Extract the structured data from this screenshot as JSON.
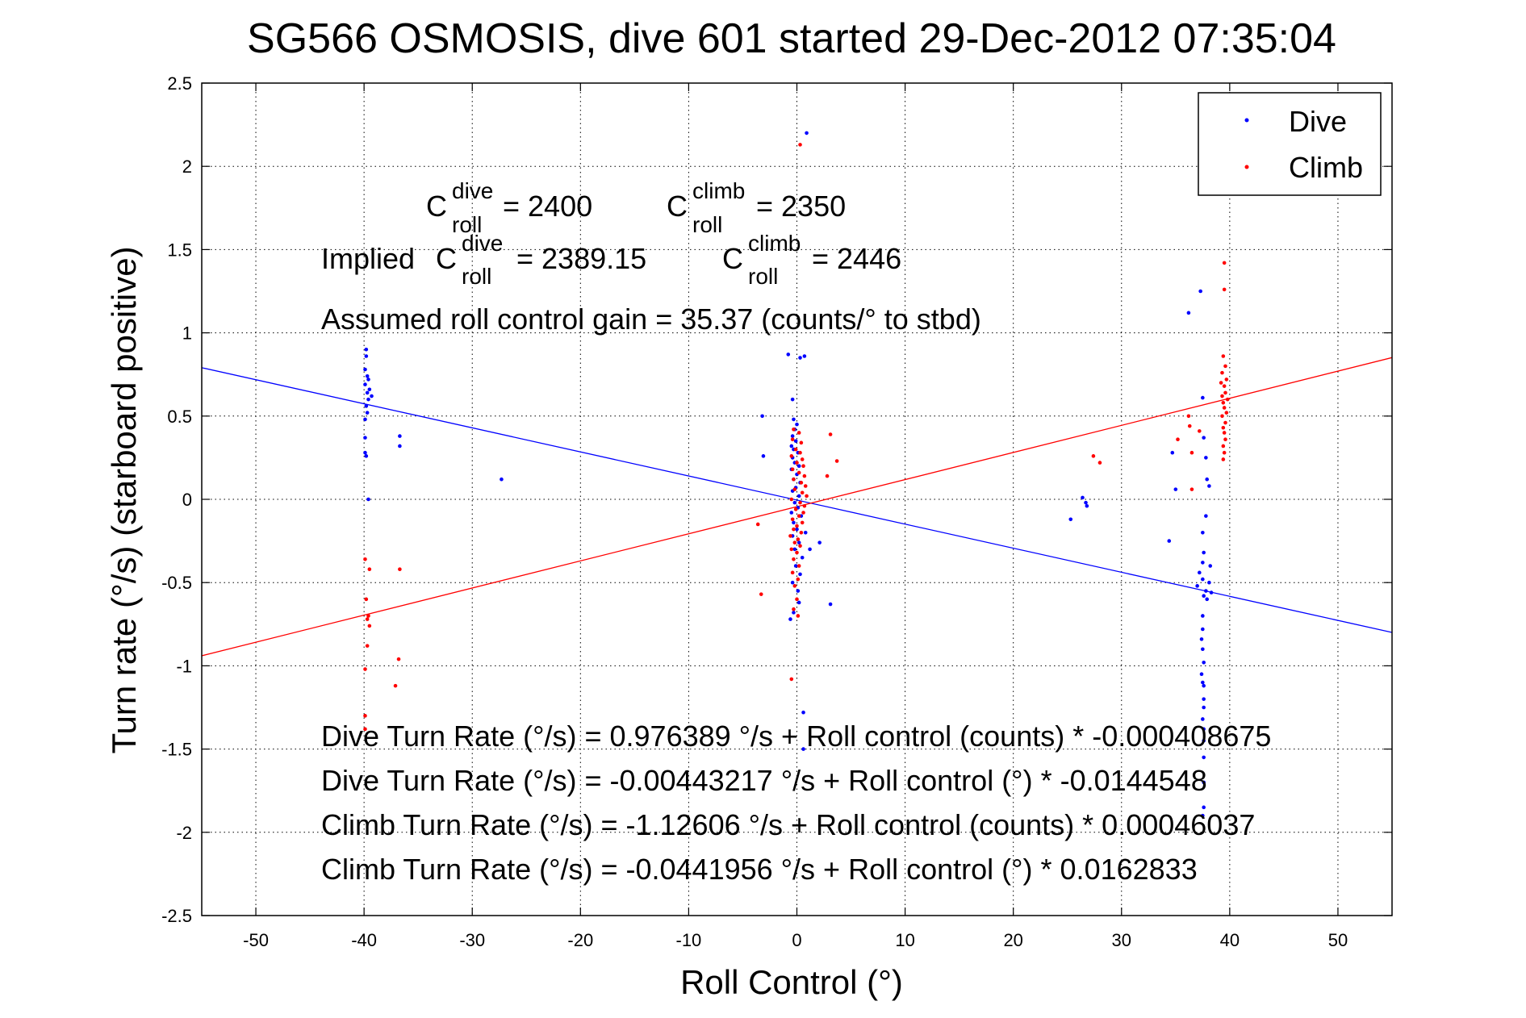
{
  "chart_data": {
    "type": "scatter",
    "title": "SG566 OSMOSIS, dive 601 started 29-Dec-2012 07:35:04",
    "xlabel": "Roll Control (°)",
    "ylabel": "Turn rate (°/s)  (starboard positive)",
    "xlim": [
      -55,
      55
    ],
    "ylim": [
      -2.5,
      2.5
    ],
    "xticks": [
      -50,
      -40,
      -30,
      -20,
      -10,
      0,
      10,
      20,
      30,
      40,
      50
    ],
    "yticks": [
      2.5,
      2,
      1.5,
      1,
      0.5,
      0,
      -0.5,
      -1,
      -1.5,
      -2,
      -2.5
    ],
    "grid": true,
    "legend_position": "top-right",
    "legend": [
      {
        "label": "Dive",
        "color": "#0000ff"
      },
      {
        "label": "Climb",
        "color": "#ff0000"
      }
    ],
    "annotations": {
      "c_roll_dive": {
        "base": "C",
        "sup": "dive",
        "sub": "roll",
        "value": "= 2400"
      },
      "c_roll_climb": {
        "base": "C",
        "sup": "climb",
        "sub": "roll",
        "value": "= 2350"
      },
      "implied_prefix": "Implied",
      "implied_dive": {
        "base": "C",
        "sup": "dive",
        "sub": "roll",
        "value": "= 2389.15"
      },
      "implied_climb": {
        "base": "C",
        "sup": "climb",
        "sub": "roll",
        "value": "= 2446"
      },
      "gain": "Assumed roll control gain = 35.37 (counts/° to stbd)",
      "equations": [
        "Dive Turn Rate (°/s) = 0.976389 °/s + Roll control (counts) * -0.000408675",
        "Dive Turn Rate (°/s) = -0.00443217 °/s + Roll control (°) * -0.0144548",
        "Climb Turn Rate (°/s) = -1.12606 °/s + Roll control (counts) * 0.00046037",
        "Climb Turn Rate (°/s) = -0.0441956 °/s + Roll control (°) * 0.0162833"
      ]
    },
    "fit_lines": [
      {
        "series": "Dive",
        "intercept": -0.00443217,
        "slope": -0.0144548,
        "color": "#0000ff"
      },
      {
        "series": "Climb",
        "intercept": -0.0441956,
        "slope": 0.0162833,
        "color": "#ff0000"
      }
    ],
    "series": [
      {
        "name": "Dive",
        "color": "#0000ff",
        "points": [
          [
            -39.8,
            0.9
          ],
          [
            -39.8,
            0.86
          ],
          [
            -39.9,
            0.78
          ],
          [
            -39.7,
            0.74
          ],
          [
            -39.6,
            0.72
          ],
          [
            -39.9,
            0.69
          ],
          [
            -39.5,
            0.66
          ],
          [
            -39.7,
            0.64
          ],
          [
            -39.3,
            0.62
          ],
          [
            -39.6,
            0.6
          ],
          [
            -39.8,
            0.56
          ],
          [
            -39.7,
            0.52
          ],
          [
            -39.9,
            0.48
          ],
          [
            -39.9,
            0.37
          ],
          [
            -39.9,
            0.28
          ],
          [
            -39.8,
            0.26
          ],
          [
            -39.6,
            0.0
          ],
          [
            -36.7,
            0.38
          ],
          [
            -36.7,
            0.32
          ],
          [
            -27.3,
            0.12
          ],
          [
            -3.2,
            0.5
          ],
          [
            -3.1,
            0.26
          ],
          [
            -0.8,
            0.87
          ],
          [
            -0.4,
            0.6
          ],
          [
            0.3,
            0.85
          ],
          [
            0.7,
            0.86
          ],
          [
            -0.3,
            0.48
          ],
          [
            0.0,
            0.45
          ],
          [
            -0.2,
            0.42
          ],
          [
            -0.4,
            0.38
          ],
          [
            -0.1,
            0.35
          ],
          [
            -0.5,
            0.32
          ],
          [
            -0.3,
            0.3
          ],
          [
            0.1,
            0.28
          ],
          [
            -0.4,
            0.25
          ],
          [
            -0.2,
            0.22
          ],
          [
            0.2,
            0.2
          ],
          [
            -0.5,
            0.18
          ],
          [
            0.0,
            0.15
          ],
          [
            -0.3,
            0.12
          ],
          [
            0.3,
            0.1
          ],
          [
            -0.1,
            0.07
          ],
          [
            -0.4,
            0.05
          ],
          [
            0.2,
            0.02
          ],
          [
            -0.2,
            -0.02
          ],
          [
            0.1,
            -0.05
          ],
          [
            -0.5,
            -0.08
          ],
          [
            0.4,
            -0.1
          ],
          [
            -0.3,
            -0.14
          ],
          [
            0.0,
            -0.18
          ],
          [
            -0.4,
            -0.22
          ],
          [
            0.2,
            -0.26
          ],
          [
            -0.2,
            -0.3
          ],
          [
            0.5,
            -0.35
          ],
          [
            -0.1,
            -0.4
          ],
          [
            0.3,
            -0.45
          ],
          [
            -0.4,
            -0.5
          ],
          [
            0.1,
            -0.55
          ],
          [
            0.2,
            -0.62
          ],
          [
            -0.3,
            -0.68
          ],
          [
            -0.6,
            -0.72
          ],
          [
            0.8,
            -0.2
          ],
          [
            1.2,
            -0.3
          ],
          [
            2.1,
            -0.26
          ],
          [
            3.1,
            -0.63
          ],
          [
            0.6,
            -1.28
          ],
          [
            0.6,
            -1.5
          ],
          [
            0.9,
            2.2
          ],
          [
            25.3,
            -0.12
          ],
          [
            26.4,
            0.01
          ],
          [
            26.7,
            -0.02
          ],
          [
            26.8,
            -0.04
          ],
          [
            34.4,
            -0.25
          ],
          [
            34.7,
            0.28
          ],
          [
            35.0,
            0.06
          ],
          [
            36.2,
            1.12
          ],
          [
            37.3,
            1.25
          ],
          [
            37.5,
            0.61
          ],
          [
            37.6,
            0.37
          ],
          [
            37.8,
            0.25
          ],
          [
            37.9,
            0.12
          ],
          [
            38.1,
            0.08
          ],
          [
            37.8,
            -0.1
          ],
          [
            37.5,
            -0.2
          ],
          [
            37.6,
            -0.32
          ],
          [
            37.5,
            -0.38
          ],
          [
            38.2,
            -0.4
          ],
          [
            37.2,
            -0.44
          ],
          [
            37.5,
            -0.48
          ],
          [
            38.1,
            -0.5
          ],
          [
            37.0,
            -0.52
          ],
          [
            37.8,
            -0.55
          ],
          [
            38.3,
            -0.56
          ],
          [
            37.6,
            -0.58
          ],
          [
            37.9,
            -0.6
          ],
          [
            37.5,
            -0.7
          ],
          [
            37.5,
            -0.78
          ],
          [
            37.4,
            -0.84
          ],
          [
            37.5,
            -0.9
          ],
          [
            37.6,
            -0.98
          ],
          [
            37.4,
            -1.05
          ],
          [
            37.5,
            -1.1
          ],
          [
            37.6,
            -1.12
          ],
          [
            37.6,
            -1.2
          ],
          [
            37.6,
            -1.25
          ],
          [
            37.5,
            -1.32
          ],
          [
            37.6,
            -1.38
          ],
          [
            37.6,
            -1.45
          ],
          [
            37.6,
            -1.55
          ],
          [
            37.6,
            -1.7
          ],
          [
            37.6,
            -1.85
          ],
          [
            37.5,
            -1.9
          ]
        ]
      },
      {
        "name": "Climb",
        "color": "#ff0000",
        "points": [
          [
            -39.9,
            -0.36
          ],
          [
            -39.5,
            -0.42
          ],
          [
            -39.8,
            -0.6
          ],
          [
            -39.6,
            -0.7
          ],
          [
            -39.7,
            -0.72
          ],
          [
            -39.5,
            -0.76
          ],
          [
            -39.7,
            -0.88
          ],
          [
            -39.9,
            -1.02
          ],
          [
            -39.9,
            -1.3
          ],
          [
            -39.9,
            -1.38
          ],
          [
            -36.7,
            -0.42
          ],
          [
            -36.8,
            -0.96
          ],
          [
            -37.1,
            -1.12
          ],
          [
            -3.3,
            -0.57
          ],
          [
            -3.6,
            -0.15
          ],
          [
            0.3,
            2.13
          ],
          [
            -0.5,
            -1.08
          ],
          [
            -0.3,
            0.42
          ],
          [
            0.2,
            0.4
          ],
          [
            -0.4,
            0.36
          ],
          [
            0.4,
            0.34
          ],
          [
            -0.1,
            0.3
          ],
          [
            0.3,
            0.28
          ],
          [
            -0.5,
            0.26
          ],
          [
            0.5,
            0.24
          ],
          [
            0.0,
            0.22
          ],
          [
            0.6,
            0.2
          ],
          [
            -0.4,
            0.18
          ],
          [
            0.2,
            0.16
          ],
          [
            0.7,
            0.14
          ],
          [
            -0.3,
            0.12
          ],
          [
            0.4,
            0.1
          ],
          [
            0.8,
            0.08
          ],
          [
            -0.2,
            0.06
          ],
          [
            0.5,
            0.04
          ],
          [
            0.9,
            0.02
          ],
          [
            -0.5,
            0.0
          ],
          [
            0.3,
            -0.02
          ],
          [
            0.7,
            -0.04
          ],
          [
            -0.1,
            -0.06
          ],
          [
            0.6,
            -0.08
          ],
          [
            0.2,
            -0.1
          ],
          [
            -0.4,
            -0.12
          ],
          [
            0.5,
            -0.14
          ],
          [
            0.0,
            -0.16
          ],
          [
            -0.3,
            -0.18
          ],
          [
            0.4,
            -0.2
          ],
          [
            -0.6,
            -0.22
          ],
          [
            0.1,
            -0.24
          ],
          [
            -0.2,
            -0.26
          ],
          [
            0.3,
            -0.28
          ],
          [
            -0.5,
            -0.3
          ],
          [
            0.0,
            -0.32
          ],
          [
            -0.3,
            -0.36
          ],
          [
            0.2,
            -0.4
          ],
          [
            -0.4,
            -0.44
          ],
          [
            0.1,
            -0.48
          ],
          [
            -0.2,
            -0.52
          ],
          [
            0.0,
            -0.6
          ],
          [
            -0.3,
            -0.66
          ],
          [
            0.1,
            -0.7
          ],
          [
            3.1,
            0.39
          ],
          [
            3.7,
            0.23
          ],
          [
            2.8,
            0.14
          ],
          [
            27.4,
            0.26
          ],
          [
            28.0,
            0.22
          ],
          [
            35.2,
            0.36
          ],
          [
            36.2,
            0.5
          ],
          [
            36.3,
            0.44
          ],
          [
            36.5,
            0.28
          ],
          [
            36.5,
            0.06
          ],
          [
            37.2,
            0.41
          ],
          [
            39.5,
            1.42
          ],
          [
            39.5,
            1.26
          ],
          [
            39.4,
            0.86
          ],
          [
            39.6,
            0.8
          ],
          [
            39.3,
            0.76
          ],
          [
            39.7,
            0.72
          ],
          [
            39.2,
            0.7
          ],
          [
            39.5,
            0.68
          ],
          [
            39.6,
            0.64
          ],
          [
            39.3,
            0.62
          ],
          [
            39.8,
            0.6
          ],
          [
            39.4,
            0.58
          ],
          [
            39.5,
            0.55
          ],
          [
            39.7,
            0.52
          ],
          [
            39.3,
            0.5
          ],
          [
            39.6,
            0.46
          ],
          [
            39.4,
            0.43
          ],
          [
            39.5,
            0.4
          ],
          [
            39.6,
            0.36
          ],
          [
            39.4,
            0.32
          ],
          [
            39.5,
            0.28
          ],
          [
            39.4,
            0.24
          ]
        ]
      }
    ]
  }
}
